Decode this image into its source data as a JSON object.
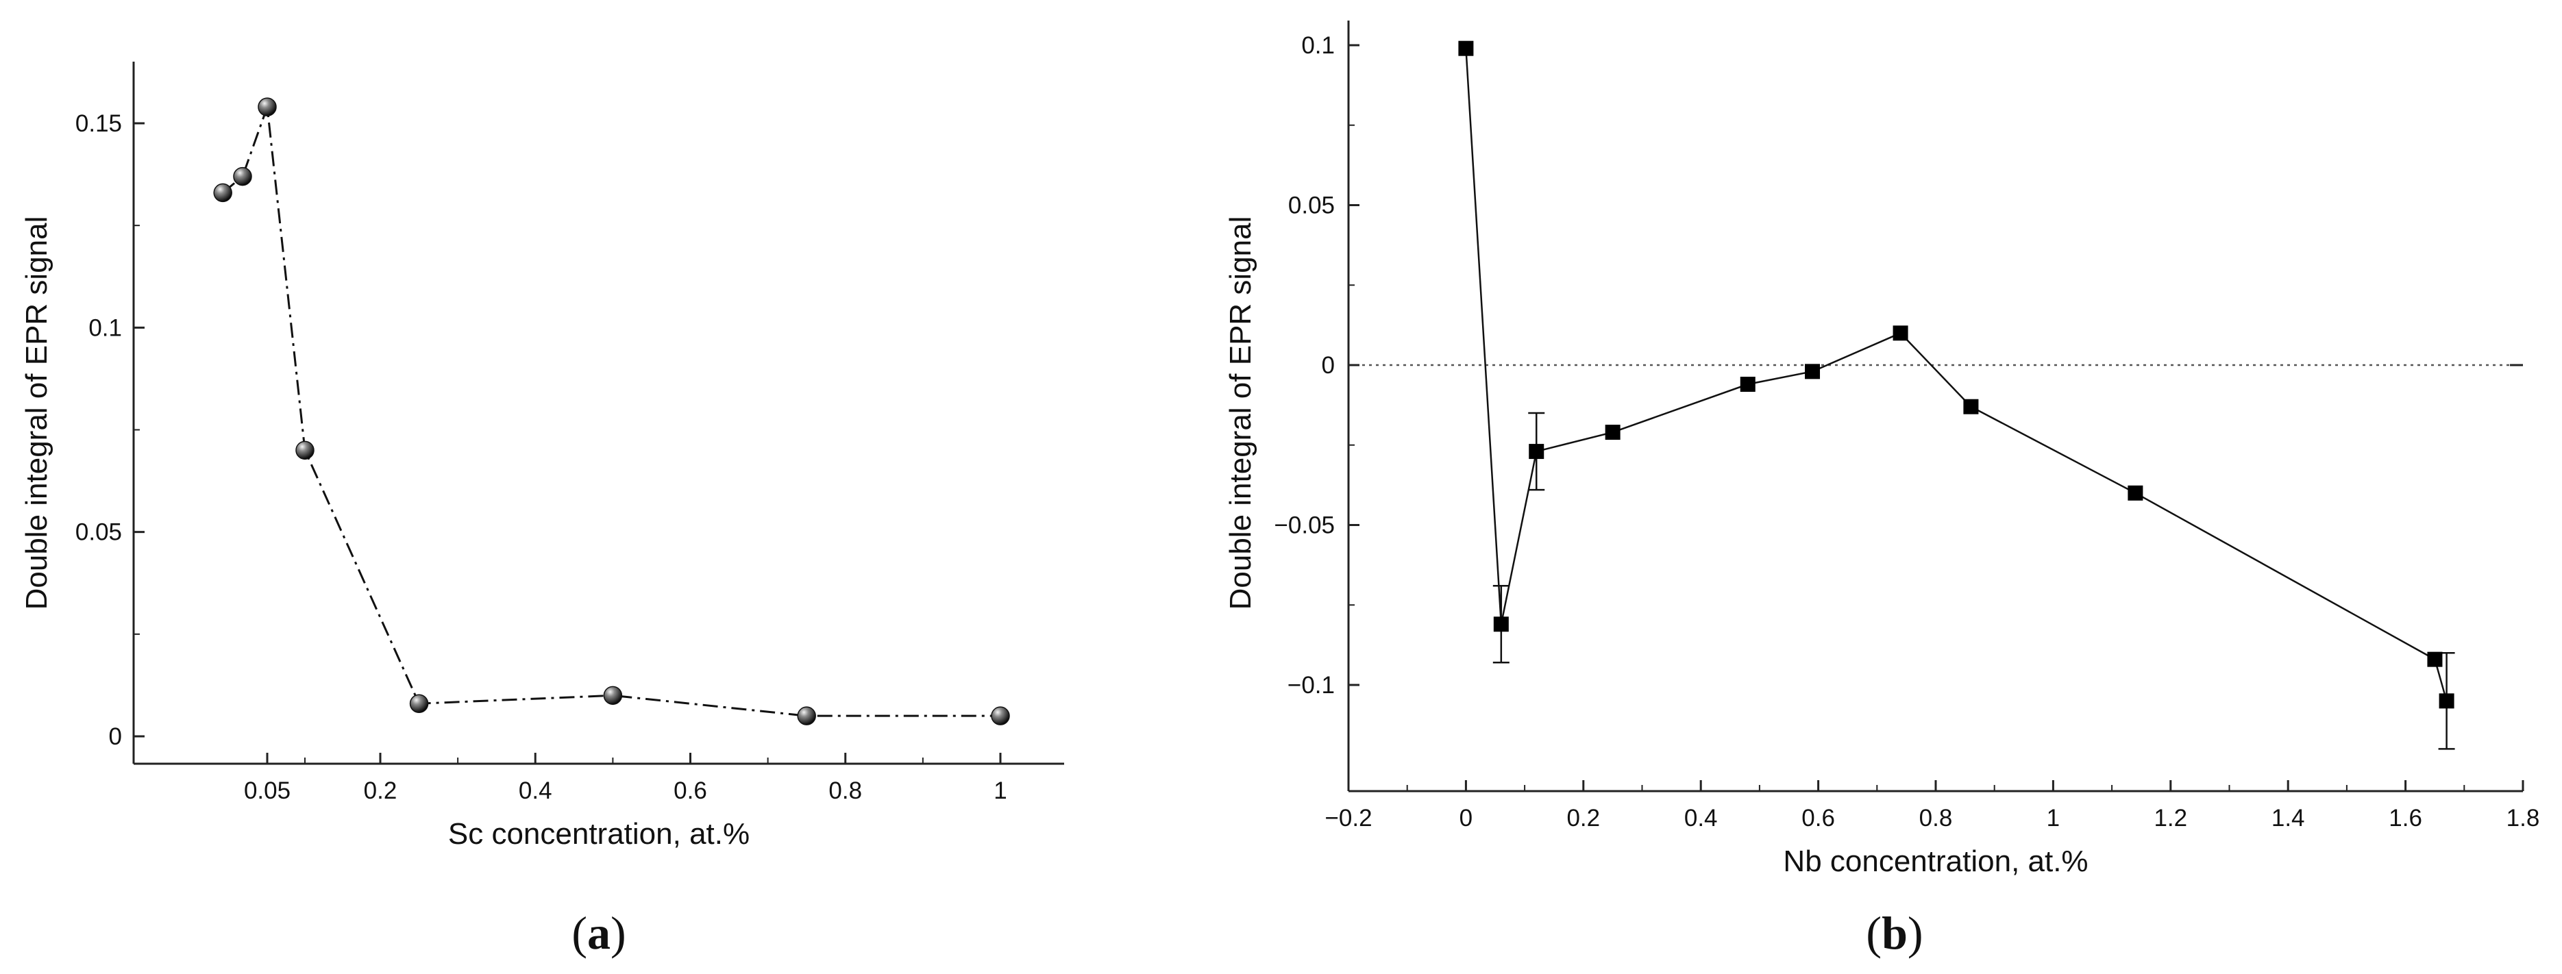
{
  "chart_data": [
    {
      "type": "line",
      "panel_label": {
        "open": "(",
        "letter": "a",
        "close": ")"
      },
      "xlabel": "Sc concentration, at.%",
      "ylabel": "Double integral of EPR signal",
      "x_tick_labels": [
        "0.05",
        "0.2",
        "0.4",
        "0.6",
        "0.8",
        "1"
      ],
      "y_tick_labels": [
        "0",
        "0.05",
        "0.1",
        "0.15"
      ],
      "line_style": "dash-dot",
      "marker": "sphere",
      "series": [
        {
          "points": [
            {
              "x": 0.005,
              "y": 0.133
            },
            {
              "x": 0.025,
              "y": 0.137
            },
            {
              "x": 0.05,
              "y": 0.154
            },
            {
              "x": 0.1,
              "y": 0.07
            },
            {
              "x": 0.25,
              "y": 0.008
            },
            {
              "x": 0.5,
              "y": 0.01
            },
            {
              "x": 0.75,
              "y": 0.005
            },
            {
              "x": 1.0,
              "y": 0.005
            }
          ]
        }
      ]
    },
    {
      "type": "line",
      "panel_label": {
        "open": "(",
        "letter": "b",
        "close": ")"
      },
      "xlabel": "Nb concentration, at.%",
      "ylabel": "Double integral of EPR signal",
      "x_tick_labels": [
        "−0.2",
        "0",
        "0.2",
        "0.4",
        "0.6",
        "0.8",
        "1",
        "1.2",
        "1.4",
        "1.6",
        "1.8"
      ],
      "y_tick_labels": [
        "−0.1",
        "−0.05",
        "0",
        "0.05",
        "0.1"
      ],
      "xlim": [
        -0.2,
        1.8
      ],
      "ylim": [
        -0.13,
        0.105
      ],
      "zero_reference_line": "dotted",
      "marker": "square",
      "series": [
        {
          "points": [
            {
              "x": 0.0,
              "y": 0.099
            },
            {
              "x": 0.06,
              "y": -0.081,
              "err": 0.012
            },
            {
              "x": 0.12,
              "y": -0.027,
              "err": 0.012
            },
            {
              "x": 0.25,
              "y": -0.021
            },
            {
              "x": 0.48,
              "y": -0.006
            },
            {
              "x": 0.59,
              "y": -0.002
            },
            {
              "x": 0.74,
              "y": 0.01
            },
            {
              "x": 0.86,
              "y": -0.013
            },
            {
              "x": 1.14,
              "y": -0.04
            },
            {
              "x": 1.65,
              "y": -0.092
            },
            {
              "x": 1.67,
              "y": -0.105,
              "err": 0.015
            }
          ]
        }
      ]
    }
  ]
}
